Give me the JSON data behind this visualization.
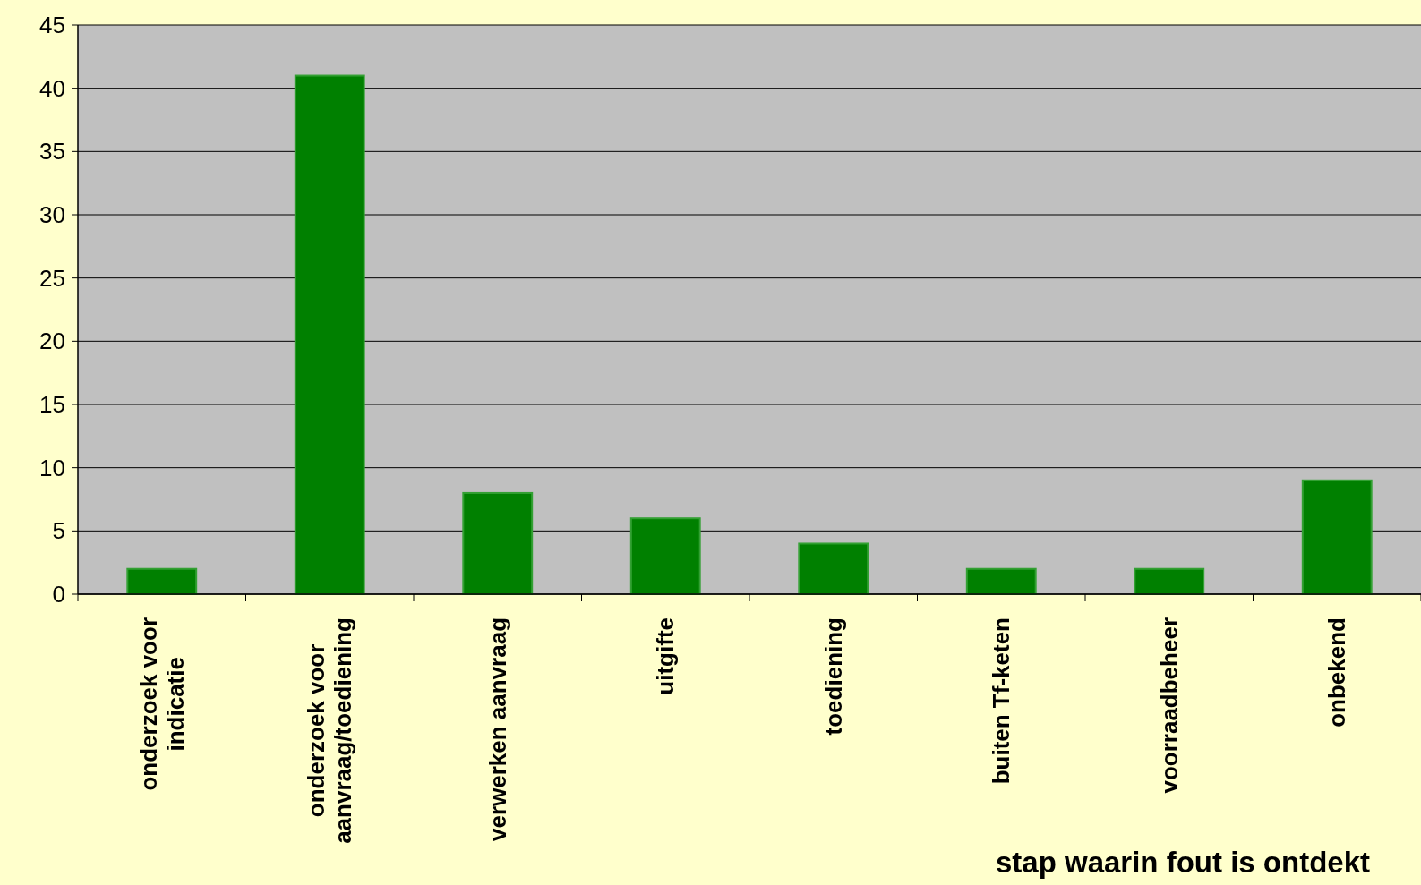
{
  "chart_data": {
    "type": "bar",
    "xlabel": "stap waarin fout is ontdekt",
    "categories": [
      "onderzoek voor indicatie",
      "onderzoek voor aanvraag/toediening",
      "verwerken aanvraag",
      "uitgifte",
      "toediening",
      "buiten Tf-keten",
      "voorraadbeheer",
      "onbekend"
    ],
    "values": [
      2,
      41,
      8,
      6,
      4,
      2,
      2,
      9
    ],
    "color": "#008000",
    "ylim": [
      0,
      45
    ],
    "yticks": [
      0,
      5,
      10,
      15,
      20,
      25,
      30,
      35,
      40,
      45
    ],
    "grid": "y"
  }
}
